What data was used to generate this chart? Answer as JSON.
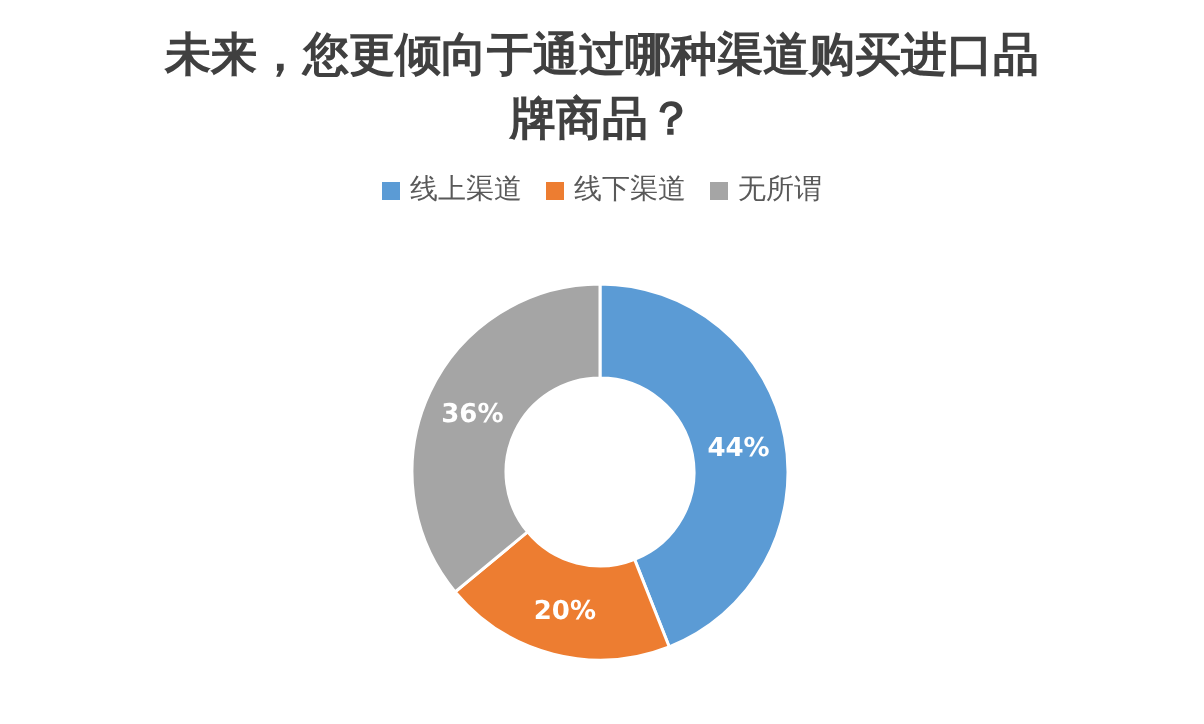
{
  "chart_data": {
    "type": "donut",
    "title": "未来，您更倾向于通过哪种渠道购买进口品牌商品？",
    "categories": [
      "线上渠道",
      "线下渠道",
      "无所谓"
    ],
    "values": [
      44,
      20,
      36
    ],
    "colors": [
      "#5b9bd5",
      "#ed7d31",
      "#a5a5a5"
    ],
    "value_labels": [
      "44%",
      "20%",
      "36%"
    ],
    "legend": "top"
  }
}
